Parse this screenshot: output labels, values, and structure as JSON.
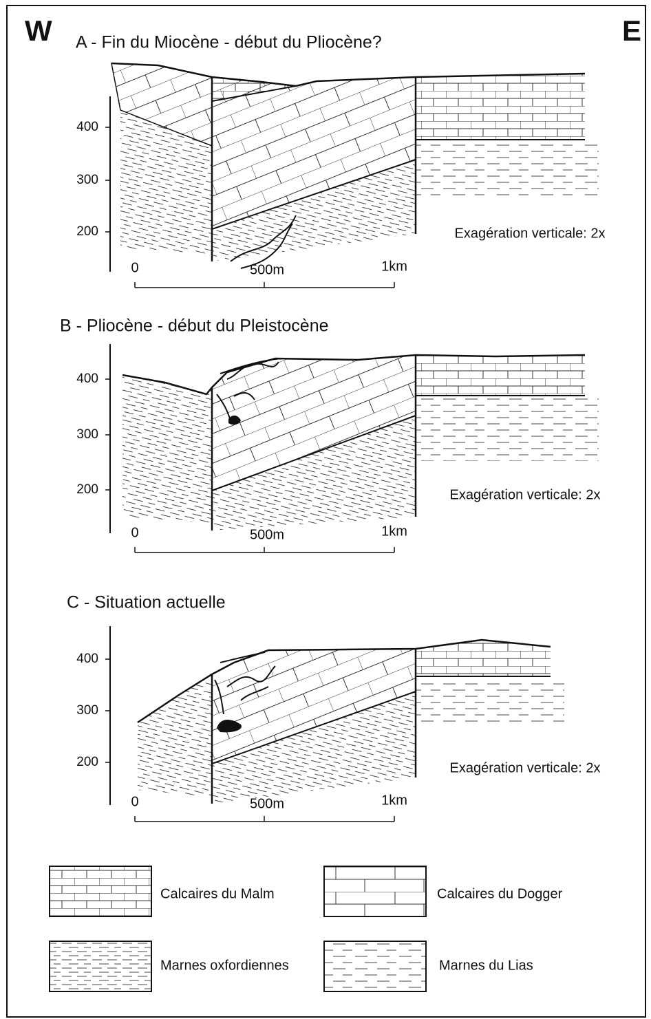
{
  "header": {
    "west": "W",
    "east": "E"
  },
  "panels": [
    {
      "title": "A - Fin du Miocène - début du Pliocène?",
      "altitudes": [
        "400",
        "300",
        "200"
      ],
      "scale": [
        "0",
        "500m",
        "1km"
      ],
      "note": "Exagération verticale: 2x"
    },
    {
      "title": "B - Pliocène - début du Pleistocène",
      "altitudes": [
        "400",
        "300",
        "200"
      ],
      "scale": [
        "0",
        "500m",
        "1km"
      ],
      "note": "Exagération verticale: 2x"
    },
    {
      "title": "C - Situation actuelle",
      "altitudes": [
        "400",
        "300",
        "200"
      ],
      "scale": [
        "0",
        "500m",
        "1km"
      ],
      "note": "Exagération verticale: 2x"
    }
  ],
  "legend": [
    {
      "label": "Calcaires du Malm"
    },
    {
      "label": "Calcaires du Dogger"
    },
    {
      "label": "Marnes oxfordiennes"
    },
    {
      "label": "Marnes du Lias"
    }
  ]
}
